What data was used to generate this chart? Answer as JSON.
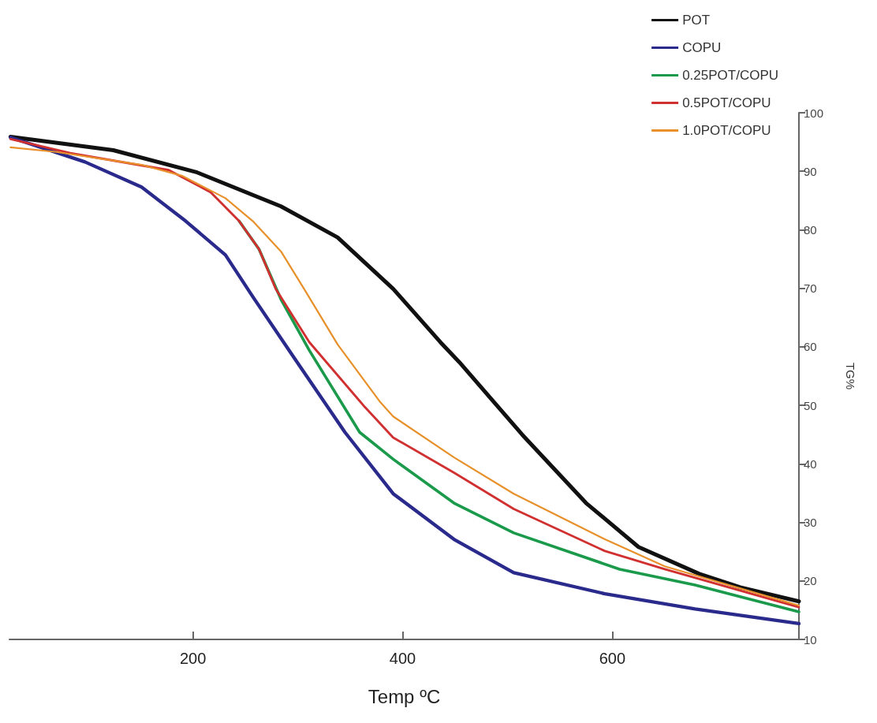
{
  "chart_data": {
    "type": "line",
    "xlabel": "Temp ºC",
    "ylabel": "TG%",
    "xlim": [
      25,
      778
    ],
    "xticks": [
      200,
      400,
      600
    ],
    "ylim": [
      10,
      100
    ],
    "yticks": [
      10,
      20,
      30,
      40,
      50,
      60,
      70,
      80,
      90,
      100
    ],
    "grid": false,
    "legend": "top right",
    "marker": "none",
    "line_style": "solid",
    "series": [
      {
        "name": "POT",
        "color": "#111111",
        "x": [
          26,
          124,
          204,
          284,
          338,
          391,
          436,
          454,
          514,
          575,
          625,
          683,
          722,
          778
        ],
        "values": [
          95.9,
          93.6,
          89.8,
          84.0,
          78.7,
          69.9,
          60.8,
          57.4,
          45.0,
          33.3,
          25.8,
          21.2,
          18.9,
          16.5
        ]
      },
      {
        "name": "COPU",
        "color": "#2a2a8c",
        "x": [
          26,
          97,
          151,
          193,
          231,
          257,
          297,
          345,
          391,
          449,
          506,
          593,
          679,
          778
        ],
        "values": [
          95.8,
          91.6,
          87.3,
          81.5,
          75.7,
          68.6,
          58.0,
          45.4,
          34.9,
          27.1,
          21.4,
          17.8,
          15.2,
          12.7
        ]
      },
      {
        "name": "0.25POT/COPU",
        "color": "#1a9a4a",
        "x": [
          244,
          263,
          284,
          311,
          359,
          391,
          449,
          506,
          607,
          679,
          778
        ],
        "values": [
          81.5,
          76.7,
          68.1,
          59.4,
          45.4,
          40.8,
          33.3,
          28.2,
          22.0,
          19.3,
          14.7
        ]
      },
      {
        "name": "0.5POT/COPU",
        "color": "#d03030",
        "x": [
          26,
          83,
          177,
          217,
          244,
          263,
          279,
          311,
          364,
          391,
          449,
          506,
          593,
          650,
          778
        ],
        "values": [
          95.5,
          93.1,
          90.2,
          86.4,
          81.5,
          76.7,
          69.9,
          60.8,
          49.7,
          44.5,
          38.5,
          32.3,
          25.1,
          22.0,
          15.5
        ]
      },
      {
        "name": "1.0POT/COPU",
        "color": "#e8902a",
        "x": [
          26,
          70,
          151,
          190,
          231,
          257,
          284,
          306,
          338,
          378,
          391,
          449,
          506,
          593,
          650,
          778
        ],
        "values": [
          94.1,
          93.3,
          91.1,
          89.2,
          85.4,
          81.5,
          76.3,
          69.9,
          60.4,
          50.7,
          48.1,
          41.1,
          34.9,
          27.1,
          22.5,
          15.8
        ]
      }
    ]
  }
}
